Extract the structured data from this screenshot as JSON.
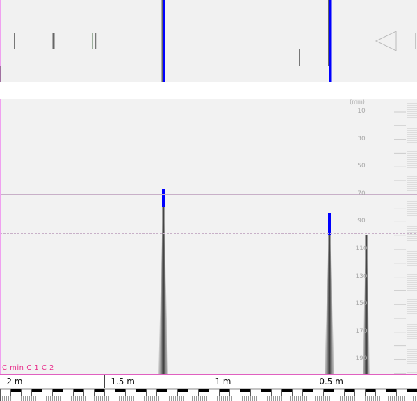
{
  "overview": {
    "marker_colors": {
      "primary": "#0000ff",
      "target": "#606060",
      "alt": "#90a890"
    },
    "nav_icon": "triangle-left-icon"
  },
  "depth_scale": {
    "unit": "(mm)",
    "labels": [
      "10",
      "30",
      "50",
      "70",
      "90",
      "110",
      "130",
      "150",
      "170",
      "190"
    ]
  },
  "legend": {
    "text": "C min  C 1  C 2",
    "color": "#e8308c"
  },
  "ruler": {
    "labels": [
      "-2 m",
      "-1.5 m",
      "-1 m",
      "-0.5 m"
    ]
  },
  "colors": {
    "accent": "#0000ff",
    "signal": "#555555",
    "border": "#e060c0"
  }
}
